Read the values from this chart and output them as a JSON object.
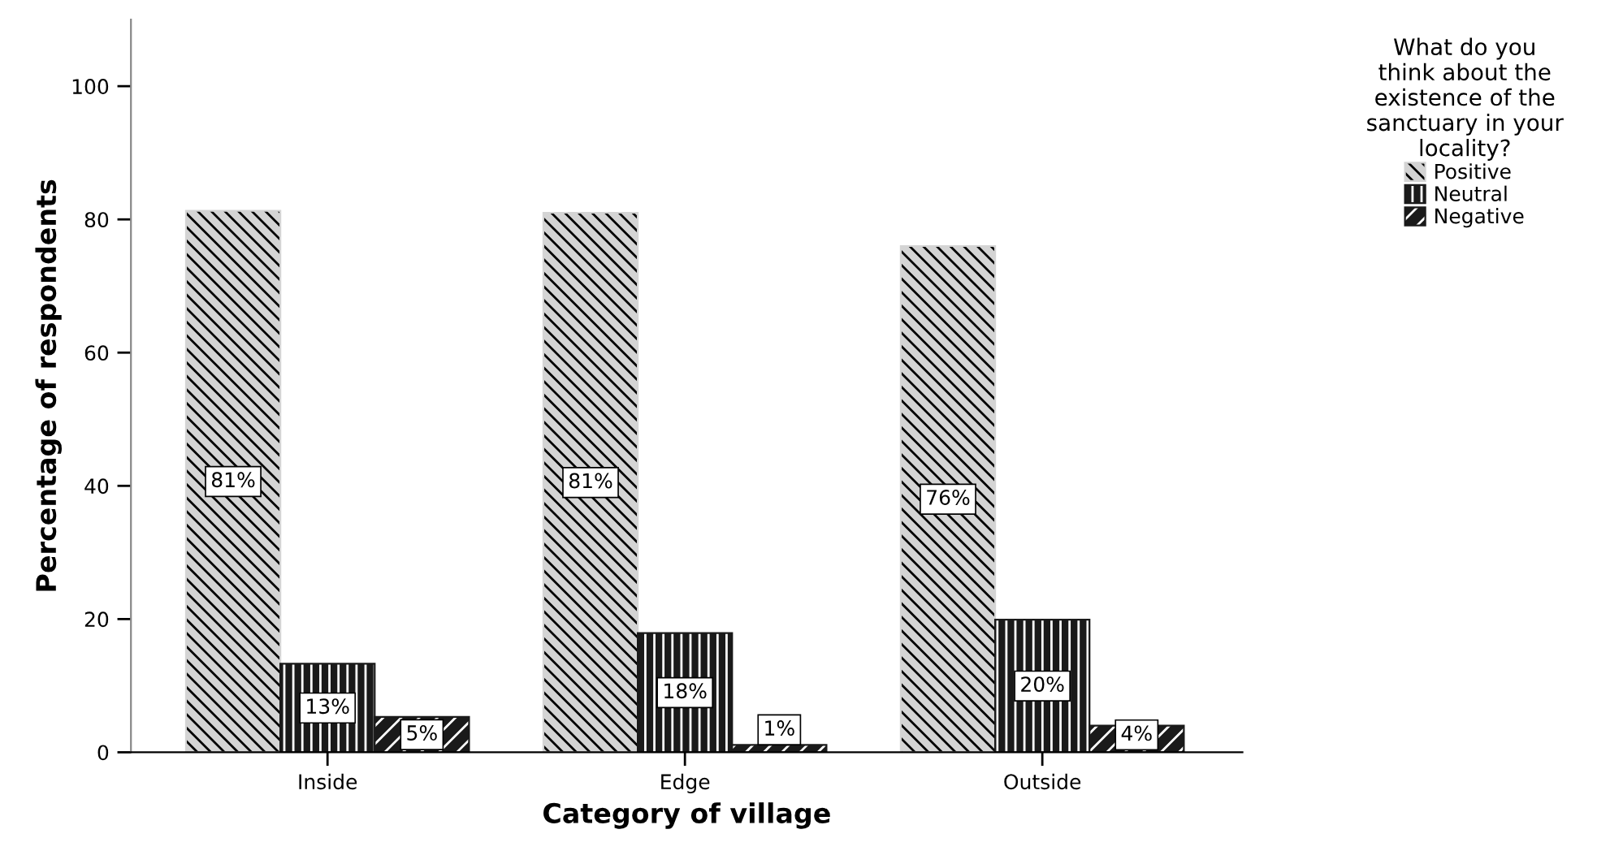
{
  "chart_data": {
    "type": "bar",
    "xlabel": "Category of village",
    "ylabel": "Percentage of respondents",
    "legend_title": "What do you\nthink about the\nexistence of the\nsanctuary in your\nlocality?",
    "categories": [
      "Inside",
      "Edge",
      "Outside"
    ],
    "series": [
      {
        "name": "Positive",
        "color": "#d4d4d4",
        "values": [
          81.3,
          81.0,
          76.0
        ],
        "value_labels": [
          "81%",
          "81%",
          "76%"
        ]
      },
      {
        "name": "Neutral",
        "color": "#1a1a1a",
        "values": [
          13.3,
          17.9,
          19.9
        ],
        "value_labels": [
          "13%",
          "18%",
          "20%"
        ]
      },
      {
        "name": "Negative",
        "color": "#1a1a1a",
        "values": [
          5.3,
          1.1,
          4.0
        ],
        "value_labels": [
          "5%",
          "1%",
          "4%"
        ]
      }
    ],
    "ylim": [
      0,
      110
    ],
    "yticks": [
      0,
      20,
      40,
      60,
      80,
      100
    ],
    "grid": false,
    "legend": "top right"
  }
}
